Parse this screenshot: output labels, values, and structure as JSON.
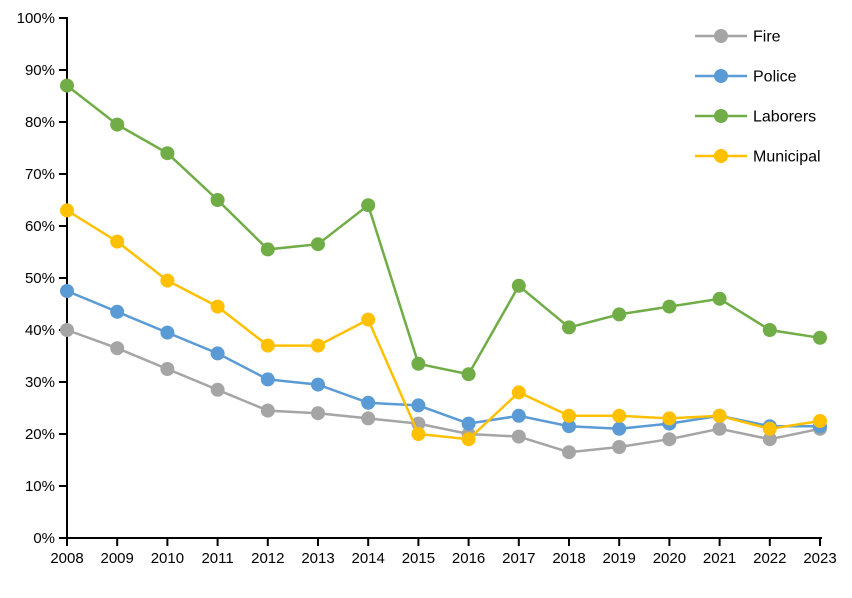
{
  "chart_data": {
    "type": "line",
    "title": "",
    "xlabel": "",
    "ylabel": "",
    "categories": [
      "2008",
      "2009",
      "2010",
      "2011",
      "2012",
      "2013",
      "2014",
      "2015",
      "2016",
      "2017",
      "2018",
      "2019",
      "2020",
      "2021",
      "2022",
      "2023"
    ],
    "series": [
      {
        "name": "Fire",
        "color": "#A5A5A5",
        "values": [
          40,
          36.5,
          32.5,
          28.5,
          24.5,
          24,
          23,
          22,
          20,
          19.5,
          16.5,
          17.5,
          19,
          21,
          19,
          21
        ]
      },
      {
        "name": "Police",
        "color": "#5B9BD5",
        "values": [
          47.5,
          43.5,
          39.5,
          35.5,
          30.5,
          29.5,
          26,
          25.5,
          22,
          23.5,
          21.5,
          21,
          22,
          23.5,
          21.5,
          21.5
        ]
      },
      {
        "name": "Laborers",
        "color": "#70AD47",
        "values": [
          87,
          79.5,
          74,
          65,
          55.5,
          56.5,
          64,
          33.5,
          31.5,
          48.5,
          40.5,
          43,
          44.5,
          46,
          40,
          38.5
        ]
      },
      {
        "name": "Municipal",
        "color": "#FFC000",
        "values": [
          63,
          57,
          49.5,
          44.5,
          37,
          37,
          42,
          20,
          19,
          28,
          23.5,
          23.5,
          23,
          23.5,
          21,
          22.5
        ]
      }
    ],
    "ylim": [
      0,
      100
    ],
    "yaxis": {
      "ticks": [
        0,
        10,
        20,
        30,
        40,
        50,
        60,
        70,
        80,
        90,
        100
      ],
      "labels": [
        "0%",
        "10%",
        "20%",
        "30%",
        "40%",
        "50%",
        "60%",
        "70%",
        "80%",
        "90%",
        "100%"
      ]
    },
    "grid": false,
    "legend_position": "top-right",
    "legend_entries": [
      "Fire",
      "Police",
      "Laborers",
      "Municipal"
    ],
    "axis_color": "#000000",
    "text_color": "#000000",
    "background_color": "#FFFFFF"
  }
}
